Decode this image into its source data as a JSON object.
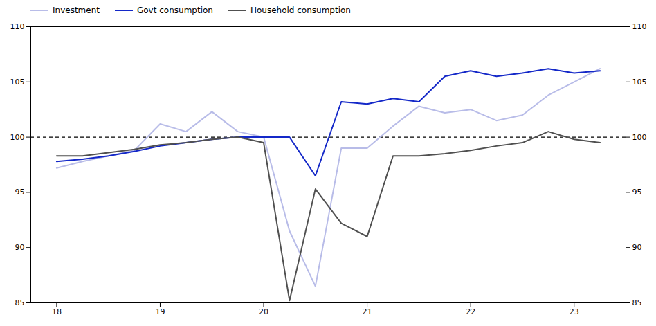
{
  "chart_data": {
    "type": "line",
    "x": [
      18.0,
      18.25,
      18.5,
      18.75,
      19.0,
      19.25,
      19.5,
      19.75,
      20.0,
      20.25,
      20.5,
      20.75,
      21.0,
      21.25,
      21.5,
      21.75,
      22.0,
      22.25,
      22.5,
      22.75,
      23.0,
      23.25
    ],
    "series": [
      {
        "name": "Investment",
        "color": "#b8bce8",
        "line_style": "solid",
        "values": [
          97.2,
          97.8,
          98.3,
          98.8,
          101.2,
          100.5,
          102.3,
          100.5,
          100.0,
          91.5,
          86.5,
          99.0,
          99.0,
          101.0,
          102.8,
          102.2,
          102.5,
          101.5,
          102.0,
          103.8,
          105.0,
          106.2
        ]
      },
      {
        "name": "Govt consumption",
        "color": "#1428c8",
        "line_style": "solid",
        "values": [
          97.8,
          98.0,
          98.3,
          98.7,
          99.2,
          99.5,
          99.8,
          100.0,
          100.0,
          100.0,
          96.5,
          103.2,
          103.0,
          103.5,
          103.2,
          105.5,
          106.0,
          105.5,
          105.8,
          106.2,
          105.8,
          106.0
        ]
      },
      {
        "name": "Household consumption",
        "color": "#505050",
        "line_style": "solid",
        "values": [
          98.3,
          98.3,
          98.6,
          98.9,
          99.3,
          99.5,
          99.8,
          100.0,
          99.5,
          85.2,
          95.3,
          92.2,
          91.0,
          98.3,
          98.3,
          98.5,
          98.8,
          99.2,
          99.5,
          100.5,
          99.8,
          99.5
        ]
      }
    ],
    "hline": {
      "y": 100,
      "color": "black",
      "line_style": "dashed"
    },
    "xlim": [
      17.75,
      23.5
    ],
    "ylim": [
      85,
      110
    ],
    "xticks": [
      18,
      19,
      20,
      21,
      22,
      23
    ],
    "yticks": [
      85,
      90,
      95,
      100,
      105,
      110
    ],
    "grid": false,
    "legend": "upper left"
  }
}
